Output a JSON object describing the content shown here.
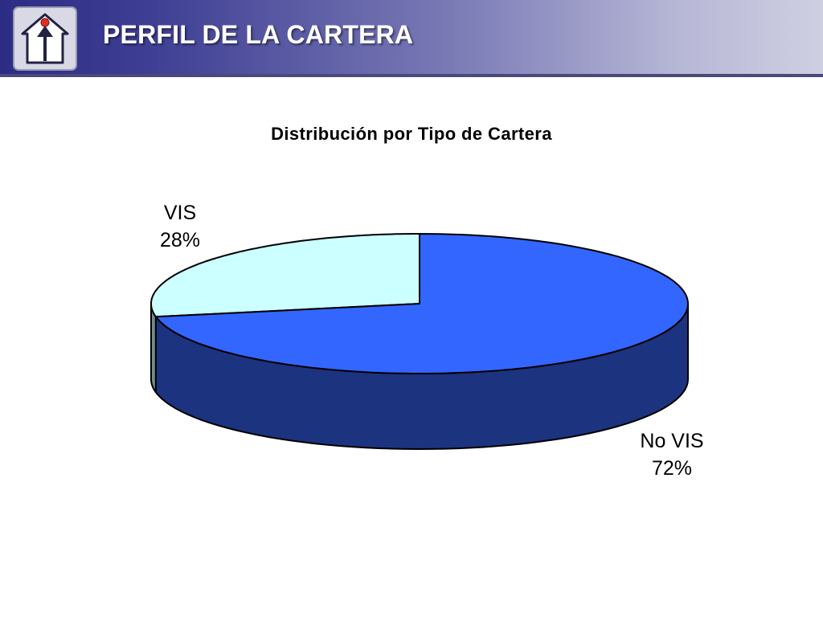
{
  "header": {
    "title": "PERFIL DE LA CARTERA",
    "logo_icon": "house-arrow-icon",
    "gradient_colors": [
      "#2c2c84",
      "#cfcfe2"
    ]
  },
  "chart_data": {
    "type": "pie",
    "style": "3d",
    "title": "Distribución por Tipo de Cartera",
    "categories": [
      "VIS",
      "No VIS"
    ],
    "values": [
      28,
      72
    ],
    "value_labels": [
      "28%",
      "72%"
    ],
    "colors": {
      "VIS": {
        "top": "#ccffff",
        "side": "#6f8c8c"
      },
      "No VIS": {
        "top": "#3366ff",
        "side": "#1c3380"
      }
    },
    "legend": "none"
  }
}
